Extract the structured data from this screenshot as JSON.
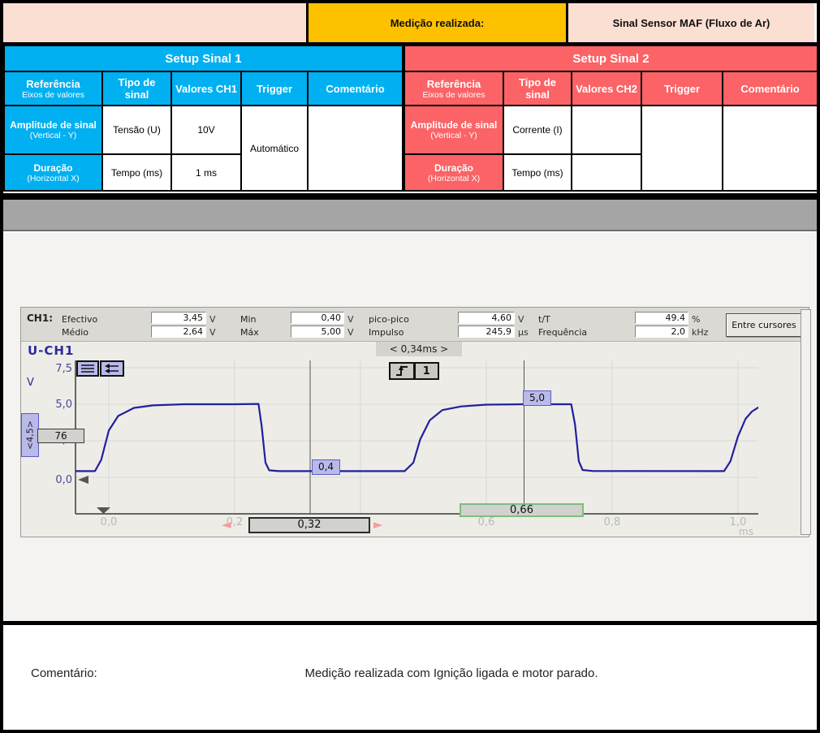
{
  "header": {
    "left_cell": "",
    "label": "Medição realizada:",
    "value": "Sinal Sensor MAF (Fluxo de Ar)"
  },
  "setup1": {
    "title": "Setup Sinal 1",
    "col_ref_main": "Referência",
    "col_ref_sub": "Eixos de valores",
    "col_tipo": "Tipo de sinal",
    "col_valores": "Valores CH1",
    "col_trigger": "Trigger",
    "col_comment": "Comentário",
    "rows": [
      {
        "label_main": "Amplitude de sinal",
        "label_sub": "(Vertical - Y)",
        "tipo": "Tensão (U)",
        "valor": "10V"
      },
      {
        "label_main": "Duração",
        "label_sub": "(Horizontal X)",
        "tipo": "Tempo (ms)",
        "valor": "1 ms"
      }
    ],
    "trigger_value": "Automático",
    "comment_value": ""
  },
  "setup2": {
    "title": "Setup Sinal 2",
    "col_ref_main": "Referência",
    "col_ref_sub": "Eixos de valores",
    "col_tipo": "Tipo de sinal",
    "col_valores": "Valores CH2",
    "col_trigger": "Trigger",
    "col_comment": "Comentário",
    "rows": [
      {
        "label_main": "Amplitude de sinal",
        "label_sub": "(Vertical - Y)",
        "tipo": "Corrente (I)",
        "valor": ""
      },
      {
        "label_main": "Duração",
        "label_sub": "(Horizontal X)",
        "tipo": "Tempo (ms)",
        "valor": ""
      }
    ],
    "trigger_value": "",
    "comment_value": ""
  },
  "scope": {
    "ch_label": "CH1:",
    "measure_row1": {
      "name1": "Efectivo",
      "value1": "3,45",
      "unit1": "V",
      "name2": "Min",
      "value2": "0,40",
      "unit2": "V",
      "name3": "pico-pico",
      "value3": "4,60",
      "unit3": "V",
      "name4": "t/T",
      "value4": "49.4",
      "unit4": "%"
    },
    "measure_row2": {
      "name1": "Médio",
      "value1": "2,64",
      "unit1": "V",
      "name2": "Máx",
      "value2": "5,00",
      "unit2": "V",
      "name3": "Impulso",
      "value3": "245,9",
      "unit3": "µs",
      "name4": "Frequência",
      "value4": "2,0",
      "unit4": "kHz"
    },
    "button": "Entre cursores",
    "trace_label": "U-CH1",
    "delta_label": "< 0,34ms >",
    "trigger_channel": "1",
    "y_unit": "V",
    "x_unit": "ms",
    "y_ticks": [
      "7,5",
      "5,0",
      "2,5",
      "0,0"
    ],
    "x_ticks": [
      "0,0",
      "0,2",
      "0,4",
      "0,6",
      "0,8",
      "1,0"
    ],
    "cursor1_time": "0,32",
    "cursor1_value": "0,4",
    "cursor2_time": "0,66",
    "cursor2_value": "5,0",
    "side_label": "<4,5>",
    "side_value": "76"
  },
  "chart_data": {
    "type": "line",
    "title": "U-CH1 oscilloscope trace (MAF sensor signal)",
    "xlabel": "ms",
    "ylabel": "V",
    "xlim": [
      -0.053,
      1.033
    ],
    "ylim": [
      -2.5,
      8.1
    ],
    "x_ticks": [
      0.0,
      0.2,
      0.4,
      0.6,
      0.8,
      1.0
    ],
    "y_ticks": [
      0.0,
      2.5,
      5.0,
      7.5
    ],
    "grid": true,
    "series": [
      {
        "name": "CH1",
        "points": [
          [
            -0.053,
            0.42
          ],
          [
            -0.022,
            0.42
          ],
          [
            -0.012,
            1.2
          ],
          [
            0.0,
            3.2
          ],
          [
            0.015,
            4.2
          ],
          [
            0.04,
            4.75
          ],
          [
            0.07,
            4.92
          ],
          [
            0.12,
            5.0
          ],
          [
            0.2,
            5.0
          ],
          [
            0.238,
            5.02
          ],
          [
            0.243,
            3.5
          ],
          [
            0.249,
            1.0
          ],
          [
            0.255,
            0.48
          ],
          [
            0.27,
            0.42
          ],
          [
            0.47,
            0.42
          ],
          [
            0.484,
            1.0
          ],
          [
            0.495,
            2.6
          ],
          [
            0.51,
            3.9
          ],
          [
            0.53,
            4.6
          ],
          [
            0.56,
            4.85
          ],
          [
            0.6,
            4.97
          ],
          [
            0.66,
            5.0
          ],
          [
            0.735,
            5.0
          ],
          [
            0.741,
            3.6
          ],
          [
            0.747,
            1.1
          ],
          [
            0.753,
            0.5
          ],
          [
            0.77,
            0.43
          ],
          [
            0.978,
            0.42
          ],
          [
            0.988,
            1.1
          ],
          [
            1.0,
            2.8
          ],
          [
            1.012,
            4.0
          ],
          [
            1.022,
            4.5
          ],
          [
            1.033,
            4.8
          ]
        ]
      }
    ],
    "cursors": [
      {
        "t_ms": 0.32,
        "value_V": 0.4
      },
      {
        "t_ms": 0.66,
        "value_V": 5.0
      }
    ],
    "measurements": {
      "efectivo_V": 3.45,
      "medio_V": 2.64,
      "min_V": 0.4,
      "max_V": 5.0,
      "pico_pico_V": 4.6,
      "impulso_us": 245.9,
      "t_over_T_pct": 49.4,
      "frequencia_kHz": 2.0,
      "delta_t_ms": 0.34
    }
  },
  "comment": {
    "label": "Comentário:",
    "text": "Medição realizada com Ignição ligada e motor parado."
  }
}
